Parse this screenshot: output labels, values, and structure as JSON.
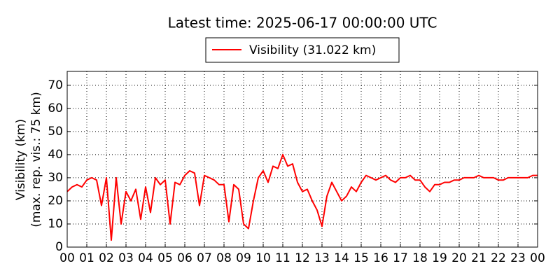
{
  "chart_data": {
    "type": "line",
    "title": "Latest time: 2025-06-17 00:00:00 UTC",
    "ylabel": [
      "Visibility (km)",
      "(max. rep. vis.: 75 km)"
    ],
    "x": [
      0,
      0.25,
      0.5,
      0.75,
      1,
      1.25,
      1.5,
      1.75,
      2,
      2.25,
      2.5,
      2.75,
      3,
      3.25,
      3.5,
      3.75,
      4,
      4.25,
      4.5,
      4.75,
      5,
      5.25,
      5.5,
      5.75,
      6,
      6.25,
      6.5,
      6.75,
      7,
      7.25,
      7.5,
      7.75,
      8,
      8.25,
      8.5,
      8.75,
      9,
      9.25,
      9.5,
      9.75,
      10,
      10.25,
      10.5,
      10.75,
      11,
      11.25,
      11.5,
      11.75,
      12,
      12.25,
      12.5,
      12.75,
      13,
      13.25,
      13.5,
      13.75,
      14,
      14.25,
      14.5,
      14.75,
      15,
      15.25,
      15.5,
      15.75,
      16,
      16.25,
      16.5,
      16.75,
      17,
      17.25,
      17.5,
      17.75,
      18,
      18.25,
      18.5,
      18.75,
      19,
      19.25,
      19.5,
      19.75,
      20,
      20.25,
      20.5,
      20.75,
      21,
      21.25,
      21.5,
      21.75,
      22,
      22.25,
      22.5,
      22.75,
      23,
      23.25,
      23.5,
      23.75,
      24
    ],
    "series": [
      {
        "name": "Visibility (31.022 km)",
        "color": "#ff0000",
        "values": [
          24,
          26,
          27,
          26,
          29,
          30,
          29,
          18,
          30,
          3,
          30,
          10,
          24,
          20,
          25,
          12,
          26,
          15,
          30,
          27,
          29,
          10,
          28,
          27,
          31,
          33,
          32,
          18,
          31,
          30,
          29,
          27,
          27,
          11,
          27,
          25,
          10,
          8,
          20,
          30,
          33,
          28,
          35,
          34,
          40,
          35,
          36,
          28,
          24,
          25,
          20,
          16,
          9,
          22,
          28,
          24,
          20,
          22,
          26,
          24,
          28,
          31,
          30,
          29,
          30,
          31,
          29,
          28,
          30,
          30,
          31,
          29,
          29,
          26,
          24,
          27,
          27,
          28,
          28,
          29,
          29,
          30,
          30,
          30,
          31,
          30,
          30,
          30,
          29,
          29,
          30,
          30,
          30,
          30,
          30,
          31,
          31
        ]
      }
    ],
    "xlim": [
      0,
      24
    ],
    "xticks": [
      {
        "value": 0,
        "label": "00"
      },
      {
        "value": 1,
        "label": "01"
      },
      {
        "value": 2,
        "label": "02"
      },
      {
        "value": 3,
        "label": "03"
      },
      {
        "value": 4,
        "label": "04"
      },
      {
        "value": 5,
        "label": "05"
      },
      {
        "value": 6,
        "label": "06"
      },
      {
        "value": 7,
        "label": "07"
      },
      {
        "value": 8,
        "label": "08"
      },
      {
        "value": 9,
        "label": "09"
      },
      {
        "value": 10,
        "label": "10"
      },
      {
        "value": 11,
        "label": "11"
      },
      {
        "value": 12,
        "label": "12"
      },
      {
        "value": 13,
        "label": "13"
      },
      {
        "value": 14,
        "label": "14"
      },
      {
        "value": 15,
        "label": "15"
      },
      {
        "value": 16,
        "label": "16"
      },
      {
        "value": 17,
        "label": "17"
      },
      {
        "value": 18,
        "label": "18"
      },
      {
        "value": 19,
        "label": "19"
      },
      {
        "value": 20,
        "label": "20"
      },
      {
        "value": 21,
        "label": "21"
      },
      {
        "value": 22,
        "label": "22"
      },
      {
        "value": 23,
        "label": "23"
      },
      {
        "value": 24,
        "label": "00"
      }
    ],
    "ylim": [
      0,
      76
    ],
    "yticks": [
      0,
      10,
      20,
      30,
      40,
      50,
      60,
      70
    ],
    "grid": true
  }
}
